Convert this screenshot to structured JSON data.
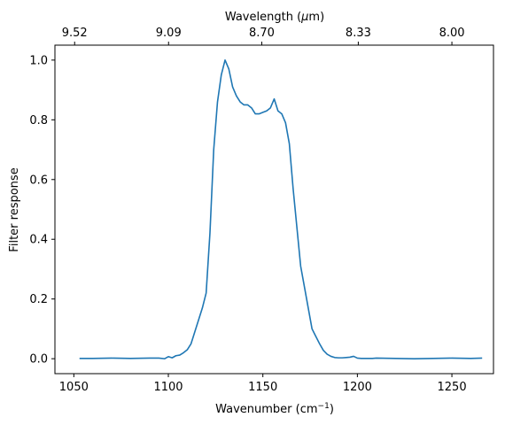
{
  "chart_data": {
    "type": "line",
    "xlabel": "Wavenumber (cm⁻¹)",
    "xlabel_text": "Wavenumber (cm",
    "xlabel_sup": "−1",
    "xlabel_close": ")",
    "ylabel": "Filter response",
    "top_xlabel": "Wavelength (μm)",
    "top_xlabel_text": "Wavelength (",
    "top_xlabel_mu": "μ",
    "top_xlabel_rest": "m)",
    "xlim": [
      1040,
      1272
    ],
    "ylim": [
      -0.05,
      1.05
    ],
    "grid": false,
    "legend": "none",
    "x_ticks": [
      1050,
      1100,
      1150,
      1200,
      1250
    ],
    "x_tick_labels": [
      "1050",
      "1100",
      "1150",
      "1200",
      "1250"
    ],
    "y_ticks": [
      0.0,
      0.2,
      0.4,
      0.6,
      0.8,
      1.0
    ],
    "y_tick_labels": [
      "0.0",
      "0.2",
      "0.4",
      "0.6",
      "0.8",
      "1.0"
    ],
    "top_ticks": [
      9.52,
      9.09,
      8.7,
      8.33,
      8.0
    ],
    "top_tick_labels": [
      "9.52",
      "9.09",
      "8.70",
      "8.33",
      "8.00"
    ],
    "line_color": "#1f77b4",
    "series": [
      {
        "x": [
          1053,
          1060,
          1070,
          1080,
          1090,
          1095,
          1098,
          1100,
          1102,
          1104,
          1106,
          1108,
          1110,
          1112,
          1114,
          1116,
          1118,
          1120,
          1122,
          1124,
          1126,
          1128,
          1130,
          1132,
          1134,
          1136,
          1138,
          1140,
          1142,
          1144,
          1146,
          1148,
          1150,
          1152,
          1154,
          1156,
          1158,
          1160,
          1162,
          1164,
          1166,
          1168,
          1170,
          1172,
          1174,
          1176,
          1178,
          1180,
          1182,
          1184,
          1186,
          1188,
          1190,
          1192,
          1194,
          1196,
          1198,
          1200,
          1202,
          1204,
          1206,
          1208,
          1210,
          1220,
          1230,
          1240,
          1250,
          1260,
          1266
        ],
        "y": [
          0.001,
          0.001,
          0.002,
          0.001,
          0.002,
          0.002,
          0.0,
          0.007,
          0.003,
          0.01,
          0.012,
          0.02,
          0.03,
          0.05,
          0.09,
          0.13,
          0.17,
          0.22,
          0.42,
          0.7,
          0.86,
          0.95,
          1.0,
          0.97,
          0.91,
          0.88,
          0.86,
          0.85,
          0.85,
          0.84,
          0.82,
          0.82,
          0.825,
          0.83,
          0.84,
          0.87,
          0.83,
          0.82,
          0.79,
          0.72,
          0.57,
          0.44,
          0.31,
          0.24,
          0.17,
          0.1,
          0.075,
          0.05,
          0.028,
          0.015,
          0.008,
          0.004,
          0.003,
          0.003,
          0.004,
          0.005,
          0.008,
          0.002,
          0.001,
          0.001,
          0.001,
          0.001,
          0.002,
          0.001,
          0.0,
          0.001,
          0.002,
          0.001,
          0.002
        ]
      }
    ]
  }
}
